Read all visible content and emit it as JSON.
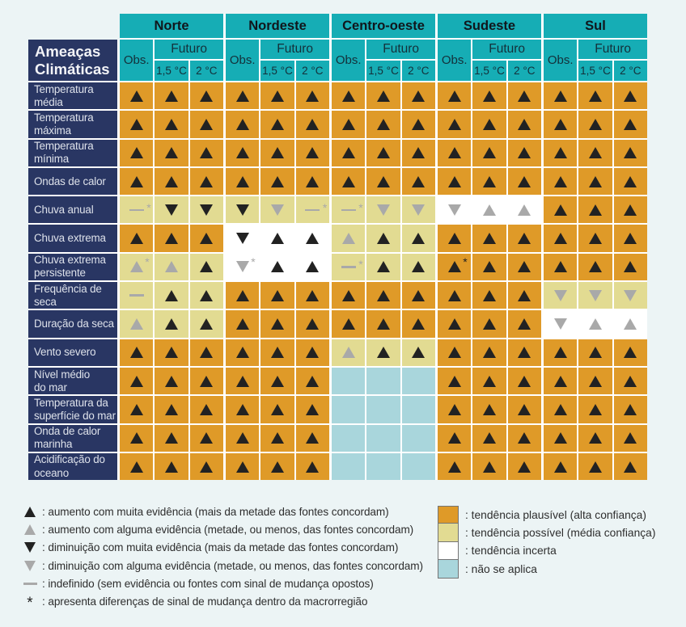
{
  "chart_data": {
    "type": "heatmap",
    "corner_label": "Ameaças\nClimáticas",
    "regions": [
      "Norte",
      "Nordeste",
      "Centro-oeste",
      "Sudeste",
      "Sul"
    ],
    "col_obs": "Obs.",
    "col_futuro": "Futuro",
    "col_scenarios": [
      "1,5 °C",
      "2 °C"
    ],
    "cell_code_legend": {
      "bg": {
        "O": "tendência plausível (alta confiança)",
        "Y": "tendência possível (média confiança)",
        "W": "tendência incerta",
        "B": "não se aplica"
      },
      "symbol": {
        "^b": "aumento com muita evidência",
        "^g": "aumento com alguma evidência",
        "vb": "diminuição com muita evidência",
        "vg": "diminuição com alguma evidência",
        "-g": "indefinido",
        "*": "apresenta diferenças de sinal de mudança dentro da macrorregião"
      }
    },
    "rows": [
      {
        "label": "Temperatura\nmédia",
        "cells": [
          "O^b",
          "O^b",
          "O^b",
          "O^b",
          "O^b",
          "O^b",
          "O^b",
          "O^b",
          "O^b",
          "O^b",
          "O^b",
          "O^b",
          "O^b",
          "O^b",
          "O^b"
        ]
      },
      {
        "label": "Temperatura\nmáxima",
        "cells": [
          "O^b",
          "O^b",
          "O^b",
          "O^b",
          "O^b",
          "O^b",
          "O^b",
          "O^b",
          "O^b",
          "O^b",
          "O^b",
          "O^b",
          "O^b",
          "O^b",
          "O^b"
        ]
      },
      {
        "label": "Temperatura\nmínima",
        "cells": [
          "O^b",
          "O^b",
          "O^b",
          "O^b",
          "O^b",
          "O^b",
          "O^b",
          "O^b",
          "O^b",
          "O^b",
          "O^b",
          "O^b",
          "O^b",
          "O^b",
          "O^b"
        ]
      },
      {
        "label": "Ondas de calor",
        "cells": [
          "O^b",
          "O^b",
          "O^b",
          "O^b",
          "O^b",
          "O^b",
          "O^b",
          "O^b",
          "O^b",
          "O^b",
          "O^b",
          "O^b",
          "O^b",
          "O^b",
          "O^b"
        ]
      },
      {
        "label": "Chuva anual",
        "cells": [
          "Y-g*",
          "Yvb",
          "Yvb",
          "Yvb",
          "Yvg",
          "Y-g*",
          "Y-g*",
          "Yvg",
          "Yvg",
          "Wvg",
          "W^g",
          "W^g",
          "O^b",
          "O^b",
          "O^b"
        ]
      },
      {
        "label": "Chuva extrema",
        "cells": [
          "O^b",
          "O^b",
          "O^b",
          "Wvb",
          "W^b",
          "W^b",
          "Y^g",
          "Y^b",
          "Y^b",
          "O^b",
          "O^b",
          "O^b",
          "O^b",
          "O^b",
          "O^b"
        ]
      },
      {
        "label": "Chuva extrema\npersistente",
        "cells": [
          "Y^g*",
          "Y^g",
          "Y^b",
          "Wvg*",
          "W^b",
          "W^b",
          "Y-g*",
          "Y^b",
          "Y^b",
          "O^b*",
          "O^b",
          "O^b",
          "O^b",
          "O^b",
          "O^b"
        ]
      },
      {
        "label": "Frequência de\nseca",
        "cells": [
          "Y-g",
          "Y^b",
          "Y^b",
          "O^b",
          "O^b",
          "O^b",
          "O^b",
          "O^b",
          "O^b",
          "O^b",
          "O^b",
          "O^b",
          "Yvg",
          "Yvg",
          "Yvg"
        ]
      },
      {
        "label": "Duração da seca",
        "cells": [
          "Y^g",
          "Y^b",
          "Y^b",
          "O^b",
          "O^b",
          "O^b",
          "O^b",
          "O^b",
          "O^b",
          "O^b",
          "O^b",
          "O^b",
          "Wvg",
          "W^g",
          "W^g"
        ]
      },
      {
        "label": "Vento severo",
        "cells": [
          "O^b",
          "O^b",
          "O^b",
          "O^b",
          "O^b",
          "O^b",
          "Y^g",
          "Y^b",
          "Y^b",
          "O^b",
          "O^b",
          "O^b",
          "O^b",
          "O^b",
          "O^b"
        ]
      },
      {
        "label": "Nível médio\ndo mar",
        "cells": [
          "O^b",
          "O^b",
          "O^b",
          "O^b",
          "O^b",
          "O^b",
          "B",
          "B",
          "B",
          "O^b",
          "O^b",
          "O^b",
          "O^b",
          "O^b",
          "O^b"
        ]
      },
      {
        "label": "Temperatura da\nsuperfície do mar",
        "cells": [
          "O^b",
          "O^b",
          "O^b",
          "O^b",
          "O^b",
          "O^b",
          "B",
          "B",
          "B",
          "O^b",
          "O^b",
          "O^b",
          "O^b",
          "O^b",
          "O^b"
        ]
      },
      {
        "label": "Onda de calor\nmarinha",
        "cells": [
          "O^b",
          "O^b",
          "O^b",
          "O^b",
          "O^b",
          "O^b",
          "B",
          "B",
          "B",
          "O^b",
          "O^b",
          "O^b",
          "O^b",
          "O^b",
          "O^b"
        ]
      },
      {
        "label": "Acidificação do\noceano",
        "cells": [
          "O^b",
          "O^b",
          "O^b",
          "O^b",
          "O^b",
          "O^b",
          "B",
          "B",
          "B",
          "O^b",
          "O^b",
          "O^b",
          "O^b",
          "O^b",
          "O^b"
        ]
      }
    ]
  },
  "legend_symbols": [
    {
      "symbol": "up-black",
      "text": ": aumento com muita evidência (mais da metade das fontes concordam)"
    },
    {
      "symbol": "up-gray",
      "text": ": aumento com alguma evidência (metade, ou menos, das fontes concordam)"
    },
    {
      "symbol": "down-black",
      "text": ": diminuição com muita evidência (mais da metade das fontes concordam)"
    },
    {
      "symbol": "down-gray",
      "text": ": diminuição com alguma evidência (metade, ou menos, das fontes concordam)"
    },
    {
      "symbol": "dash",
      "text": ": indefinido (sem evidência ou fontes com sinal de mudança opostos)"
    },
    {
      "symbol": "star",
      "text": ": apresenta diferenças de sinal de mudança dentro da macrorregião"
    }
  ],
  "legend_colors": [
    {
      "color": "#df9a28",
      "text": ": tendência plausível (alta confiança)"
    },
    {
      "color": "#e2db92",
      "text": ": tendência possível (média confiança)"
    },
    {
      "color": "#ffffff",
      "text": ": tendência incerta"
    },
    {
      "color": "#a9d6dc",
      "text": ": não se aplica"
    }
  ],
  "colors": {
    "teal": "#16adb5",
    "navy": "#293663",
    "orange": "#df9a28",
    "yellow": "#e2db92",
    "white": "#ffffff",
    "blue": "#a9d6dc",
    "background": "#ecf4f5",
    "black_symbol": "#222222",
    "gray_symbol": "#a9a9a9"
  }
}
